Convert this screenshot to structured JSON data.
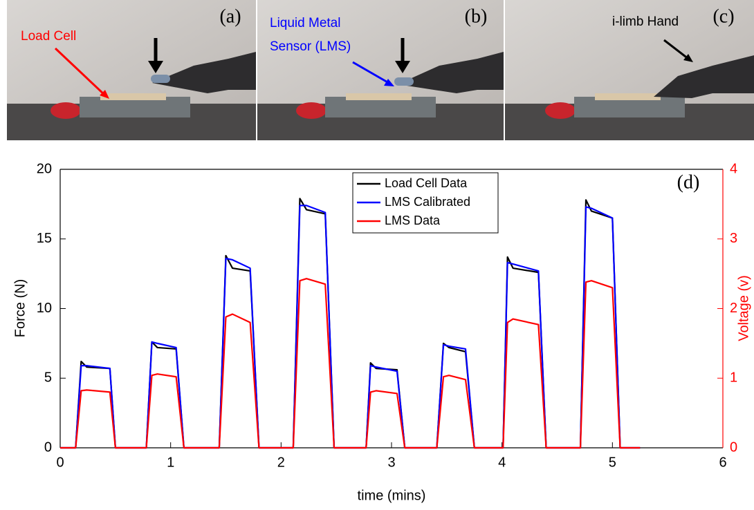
{
  "photos": [
    {
      "label": "(a)",
      "annotation": [
        "Load Cell"
      ]
    },
    {
      "label": "(b)",
      "annotation": [
        "Liquid Metal",
        "Sensor (LMS)"
      ]
    },
    {
      "label": "(c)",
      "annotation": [
        "i-limb Hand"
      ]
    }
  ],
  "chart_data": {
    "type": "line",
    "panel_label": "(d)",
    "x_label": "time (mins)",
    "y_label": "Force (N)",
    "y2_label": "Voltage (v)",
    "xlim": [
      0,
      6
    ],
    "xticks": [
      0,
      1,
      2,
      3,
      4,
      5,
      6
    ],
    "ylim": [
      0,
      20
    ],
    "yticks": [
      0,
      5,
      10,
      15,
      20
    ],
    "y2lim": [
      0,
      4
    ],
    "y2ticks": [
      0,
      1,
      2,
      3,
      4
    ],
    "legend": "upper center",
    "x": [
      0,
      0.14,
      0.19,
      0.24,
      0.45,
      0.5,
      0.78,
      0.83,
      0.88,
      1.05,
      1.12,
      1.44,
      1.5,
      1.56,
      1.72,
      1.8,
      2.11,
      2.17,
      2.23,
      2.4,
      2.48,
      2.77,
      2.81,
      2.86,
      3.05,
      3.12,
      3.41,
      3.47,
      3.52,
      3.67,
      3.75,
      4.01,
      4.05,
      4.1,
      4.33,
      4.4,
      4.71,
      4.76,
      4.81,
      5.0,
      5.07,
      5.25
    ],
    "series": [
      {
        "name": "Load Cell Data",
        "color": "#000000",
        "values": [
          0,
          0,
          6.2,
          5.8,
          5.7,
          0,
          0,
          7.6,
          7.2,
          7.1,
          0,
          0,
          13.8,
          12.9,
          12.7,
          0,
          0,
          17.9,
          17.1,
          16.8,
          0,
          0,
          6.1,
          5.7,
          5.6,
          0,
          0,
          7.5,
          7.2,
          6.9,
          0,
          0,
          13.7,
          12.9,
          12.6,
          0,
          0,
          17.8,
          17.0,
          16.5,
          0,
          0
        ]
      },
      {
        "name": "LMS Calibrated",
        "color": "#0000ff",
        "values": [
          0,
          0,
          5.9,
          5.9,
          5.7,
          0,
          0,
          7.6,
          7.5,
          7.2,
          0,
          0,
          13.6,
          13.5,
          12.9,
          0,
          0,
          17.4,
          17.4,
          16.9,
          0,
          0,
          5.9,
          5.8,
          5.5,
          0,
          0,
          7.4,
          7.3,
          7.1,
          0,
          0,
          13.3,
          13.2,
          12.7,
          0,
          0,
          17.3,
          17.2,
          16.5,
          0,
          0
        ]
      },
      {
        "name": "LMS Data",
        "color": "#ff0000",
        "axis": "y2",
        "values": [
          0,
          0,
          0.82,
          0.83,
          0.8,
          0,
          0,
          1.04,
          1.06,
          1.02,
          0,
          0,
          1.88,
          1.92,
          1.8,
          0,
          0,
          2.4,
          2.43,
          2.35,
          0,
          0,
          0.8,
          0.82,
          0.78,
          0,
          0,
          1.02,
          1.04,
          0.98,
          0,
          0,
          1.8,
          1.85,
          1.77,
          0,
          0,
          2.38,
          2.4,
          2.3,
          0,
          0
        ]
      }
    ]
  }
}
